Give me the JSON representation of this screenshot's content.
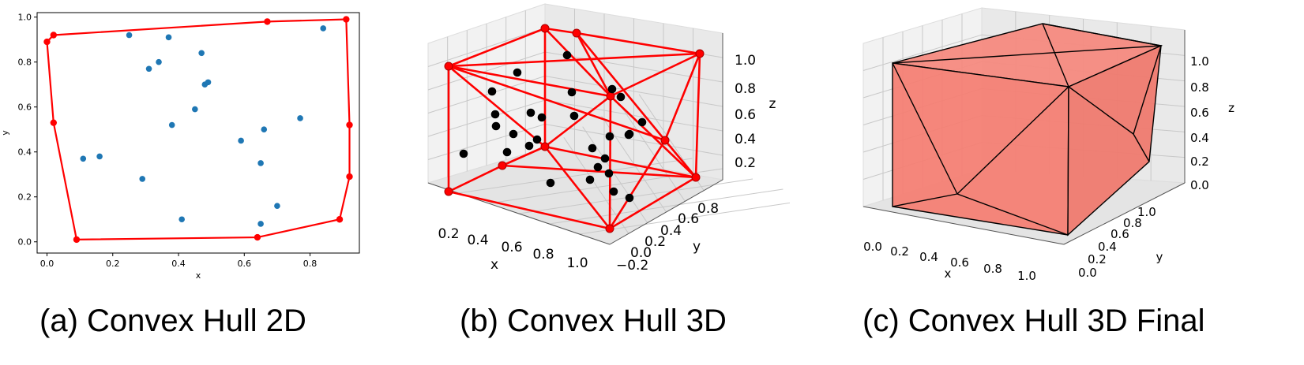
{
  "captions": {
    "a": "(a) Convex Hull 2D",
    "b": "(b) Convex Hull 3D",
    "c": "(c) Convex Hull 3D Final"
  },
  "colors": {
    "hull": "#ff0000",
    "points2d": "#1f77b4",
    "points3d": "#000000",
    "face": "#f47f74",
    "edge": "#000000"
  },
  "chart_data": [
    {
      "type": "scatter",
      "title": "",
      "xlabel": "x",
      "ylabel": "y",
      "xlim": [
        -0.03,
        0.95
      ],
      "ylim": [
        -0.05,
        1.02
      ],
      "xticks": [
        "0.0",
        "0.2",
        "0.4",
        "0.6",
        "0.8"
      ],
      "yticks": [
        "0.0",
        "0.2",
        "0.4",
        "0.6",
        "0.8",
        "1.0"
      ],
      "grid": false,
      "points": [
        {
          "x": 0.25,
          "y": 0.92
        },
        {
          "x": 0.37,
          "y": 0.91
        },
        {
          "x": 0.84,
          "y": 0.95
        },
        {
          "x": 0.34,
          "y": 0.8
        },
        {
          "x": 0.31,
          "y": 0.77
        },
        {
          "x": 0.47,
          "y": 0.84
        },
        {
          "x": 0.48,
          "y": 0.7
        },
        {
          "x": 0.49,
          "y": 0.71
        },
        {
          "x": 0.45,
          "y": 0.59
        },
        {
          "x": 0.38,
          "y": 0.52
        },
        {
          "x": 0.66,
          "y": 0.5
        },
        {
          "x": 0.77,
          "y": 0.55
        },
        {
          "x": 0.59,
          "y": 0.45
        },
        {
          "x": 0.11,
          "y": 0.37
        },
        {
          "x": 0.16,
          "y": 0.38
        },
        {
          "x": 0.29,
          "y": 0.28
        },
        {
          "x": 0.65,
          "y": 0.35
        },
        {
          "x": 0.7,
          "y": 0.16
        },
        {
          "x": 0.41,
          "y": 0.1
        },
        {
          "x": 0.65,
          "y": 0.08
        }
      ],
      "hull": [
        {
          "x": 0.0,
          "y": 0.89
        },
        {
          "x": 0.02,
          "y": 0.92
        },
        {
          "x": 0.67,
          "y": 0.98
        },
        {
          "x": 0.91,
          "y": 0.99
        },
        {
          "x": 0.92,
          "y": 0.52
        },
        {
          "x": 0.92,
          "y": 0.29
        },
        {
          "x": 0.89,
          "y": 0.1
        },
        {
          "x": 0.64,
          "y": 0.02
        },
        {
          "x": 0.09,
          "y": 0.01
        },
        {
          "x": 0.02,
          "y": 0.53
        }
      ]
    },
    {
      "type": "scatter3d",
      "title": "",
      "xlabel": "x",
      "ylabel": "y",
      "zlabel": "z",
      "xticks": [
        "0.2",
        "0.4",
        "0.6",
        "0.8",
        "1.0"
      ],
      "yticks": [
        "−0.2",
        "0.0",
        "0.2",
        "0.4",
        "0.6",
        "0.8"
      ],
      "zticks": [
        "0.2",
        "0.4",
        "0.6",
        "0.8",
        "1.0"
      ]
    },
    {
      "type": "surface3d",
      "title": "",
      "xlabel": "x",
      "ylabel": "y",
      "zlabel": "z",
      "xticks": [
        "0.0",
        "0.2",
        "0.4",
        "0.6",
        "0.8",
        "1.0"
      ],
      "yticks": [
        "0.0",
        "0.2",
        "0.4",
        "0.6",
        "0.8",
        "1.0"
      ],
      "zticks": [
        "0.0",
        "0.2",
        "0.4",
        "0.6",
        "0.8",
        "1.0"
      ]
    }
  ]
}
